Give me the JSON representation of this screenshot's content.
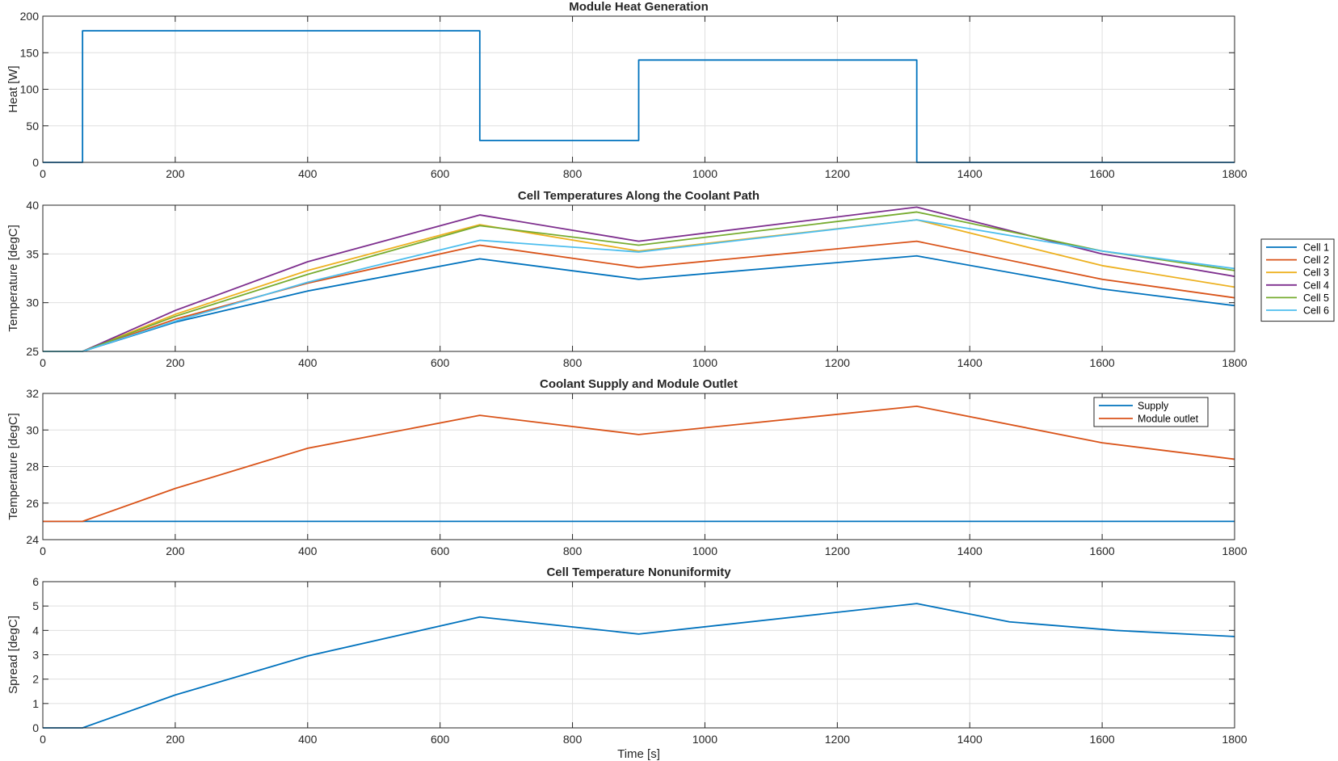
{
  "chart_data": [
    {
      "type": "line",
      "title": "Module Heat Generation",
      "xlabel": "",
      "ylabel": "Heat [W]",
      "xlim": [
        0,
        1800
      ],
      "ylim": [
        0,
        200
      ],
      "xticks": [
        0,
        200,
        400,
        600,
        800,
        1000,
        1200,
        1400,
        1600,
        1800
      ],
      "yticks": [
        0,
        50,
        100,
        150,
        200
      ],
      "grid": true,
      "legend": null,
      "series": [
        {
          "color": "#0072BD",
          "x": [
            0,
            60,
            60,
            660,
            660,
            900,
            900,
            1320,
            1320,
            1800
          ],
          "y": [
            0,
            0,
            180,
            180,
            30,
            30,
            140,
            140,
            0,
            0
          ]
        }
      ]
    },
    {
      "type": "line",
      "title": "Cell Temperatures Along the Coolant Path",
      "xlabel": "",
      "ylabel": "Temperature [degC]",
      "xlim": [
        0,
        1800
      ],
      "ylim": [
        25,
        40
      ],
      "xticks": [
        0,
        200,
        400,
        600,
        800,
        1000,
        1200,
        1400,
        1600,
        1800
      ],
      "yticks": [
        25,
        30,
        35,
        40
      ],
      "grid": true,
      "legend": "outside-right",
      "series": [
        {
          "name": "Cell 1",
          "color": "#0072BD",
          "x": [
            0,
            60,
            200,
            400,
            660,
            900,
            1320,
            1600,
            1800
          ],
          "y": [
            25,
            25,
            28.0,
            31.2,
            34.5,
            32.4,
            34.8,
            31.4,
            29.7
          ]
        },
        {
          "name": "Cell 2",
          "color": "#D95319",
          "x": [
            0,
            60,
            200,
            400,
            660,
            900,
            1320,
            1600,
            1800
          ],
          "y": [
            25,
            25,
            28.3,
            32.0,
            35.9,
            33.6,
            36.3,
            32.4,
            30.5
          ]
        },
        {
          "name": "Cell 3",
          "color": "#EDB120",
          "x": [
            0,
            60,
            200,
            400,
            660,
            900,
            1320,
            1600,
            1800
          ],
          "y": [
            25,
            25,
            28.8,
            33.3,
            38.0,
            35.3,
            38.5,
            33.8,
            31.6
          ]
        },
        {
          "name": "Cell 4",
          "color": "#7E2F8E",
          "x": [
            0,
            60,
            200,
            400,
            660,
            900,
            1320,
            1600,
            1800
          ],
          "y": [
            25,
            25,
            29.2,
            34.2,
            39.0,
            36.3,
            39.8,
            35.0,
            32.7
          ]
        },
        {
          "name": "Cell 5",
          "color": "#77AC30",
          "x": [
            0,
            60,
            200,
            400,
            660,
            900,
            1320,
            1600,
            1800
          ],
          "y": [
            25,
            25,
            28.6,
            32.9,
            37.9,
            35.9,
            39.3,
            35.3,
            33.3
          ]
        },
        {
          "name": "Cell 6",
          "color": "#4DBEEE",
          "x": [
            0,
            60,
            200,
            400,
            660,
            900,
            1320,
            1600,
            1800
          ],
          "y": [
            25,
            25,
            28.1,
            32.1,
            36.4,
            35.2,
            38.5,
            35.3,
            33.5
          ]
        }
      ]
    },
    {
      "type": "line",
      "title": "Coolant Supply and Module Outlet",
      "xlabel": "",
      "ylabel": "Temperature [degC]",
      "xlim": [
        0,
        1800
      ],
      "ylim": [
        24,
        32
      ],
      "xticks": [
        0,
        200,
        400,
        600,
        800,
        1000,
        1200,
        1400,
        1600,
        1800
      ],
      "yticks": [
        24,
        26,
        28,
        30,
        32
      ],
      "grid": true,
      "legend": "top-right",
      "series": [
        {
          "name": "Supply",
          "color": "#0072BD",
          "x": [
            0,
            1800
          ],
          "y": [
            25,
            25
          ]
        },
        {
          "name": "Module outlet",
          "color": "#D95319",
          "x": [
            0,
            60,
            200,
            400,
            660,
            900,
            1320,
            1600,
            1800
          ],
          "y": [
            25,
            25,
            26.8,
            29.0,
            30.8,
            29.75,
            31.3,
            29.3,
            28.4
          ]
        }
      ]
    },
    {
      "type": "line",
      "title": "Cell Temperature Nonuniformity",
      "xlabel": "Time [s]",
      "ylabel": "Spread [degC]",
      "xlim": [
        0,
        1800
      ],
      "ylim": [
        0,
        6
      ],
      "xticks": [
        0,
        200,
        400,
        600,
        800,
        1000,
        1200,
        1400,
        1600,
        1800
      ],
      "yticks": [
        0,
        1,
        2,
        3,
        4,
        5,
        6
      ],
      "grid": true,
      "legend": null,
      "series": [
        {
          "color": "#0072BD",
          "x": [
            0,
            60,
            200,
            400,
            660,
            900,
            1320,
            1460,
            1620,
            1800
          ],
          "y": [
            0,
            0,
            1.35,
            2.95,
            4.55,
            3.85,
            5.1,
            4.35,
            4.0,
            3.75
          ]
        }
      ]
    }
  ]
}
